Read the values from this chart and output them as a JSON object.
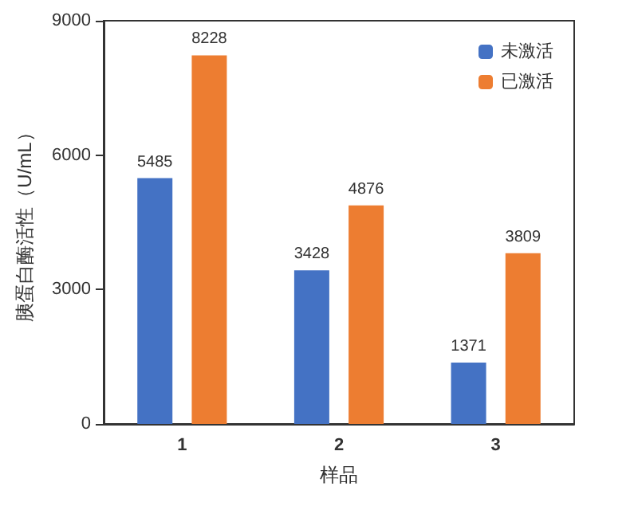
{
  "chart_data": {
    "type": "bar",
    "xlabel": "样品",
    "ylabel": "胰蛋白酶活性（U/mL）",
    "categories": [
      "1",
      "2",
      "3"
    ],
    "series": [
      {
        "name": "未激活",
        "color": "#4472c4",
        "values": [
          5485,
          3428,
          1371
        ]
      },
      {
        "name": "已激活",
        "color": "#ed7d31",
        "values": [
          8228,
          4876,
          3809
        ]
      }
    ],
    "ylim": [
      0,
      9000
    ],
    "yticks": [
      0,
      3000,
      6000,
      9000
    ],
    "grid": false,
    "legend": "top right",
    "data_labels": true
  }
}
